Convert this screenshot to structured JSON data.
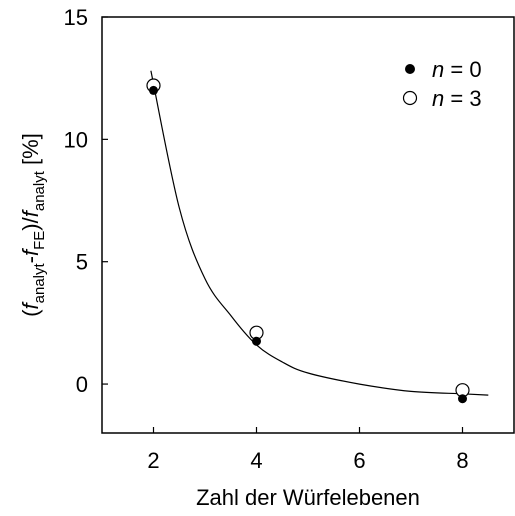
{
  "chart_data": {
    "type": "scatter",
    "xlabel": "Zahl der Würfelebenen",
    "ylabel": {
      "open": "(",
      "f1": "f",
      "sub1": "analyt",
      "dash": "-",
      "f2": "f",
      "sub2": "FE",
      "slash": ")/",
      "f3": "f",
      "sub3": "analyt",
      "unit": " [%]"
    },
    "xlim": [
      1,
      9
    ],
    "ylim": [
      -2,
      15
    ],
    "xticks": [
      2,
      4,
      6,
      8
    ],
    "yticks": [
      0,
      5,
      10,
      15
    ],
    "grid": false,
    "legend_position": "top-right",
    "series": [
      {
        "legend_var": "n",
        "legend_rest": " = 0",
        "marker": "filled-circle",
        "x": [
          2,
          4,
          8
        ],
        "y": [
          12.0,
          1.75,
          -0.6
        ]
      },
      {
        "legend_var": "n",
        "legend_rest": " = 3",
        "marker": "open-circle",
        "x": [
          2,
          4,
          8
        ],
        "y": [
          12.2,
          2.1,
          -0.25
        ]
      }
    ],
    "fit_curve": {
      "x": [
        1.95,
        2.5,
        3.0,
        3.5,
        4.0,
        4.5,
        5.0,
        6.0,
        7.0,
        8.0,
        8.5
      ],
      "y": [
        12.8,
        7.2,
        4.3,
        2.8,
        1.6,
        0.9,
        0.45,
        0.0,
        -0.3,
        -0.4,
        -0.45
      ]
    }
  }
}
